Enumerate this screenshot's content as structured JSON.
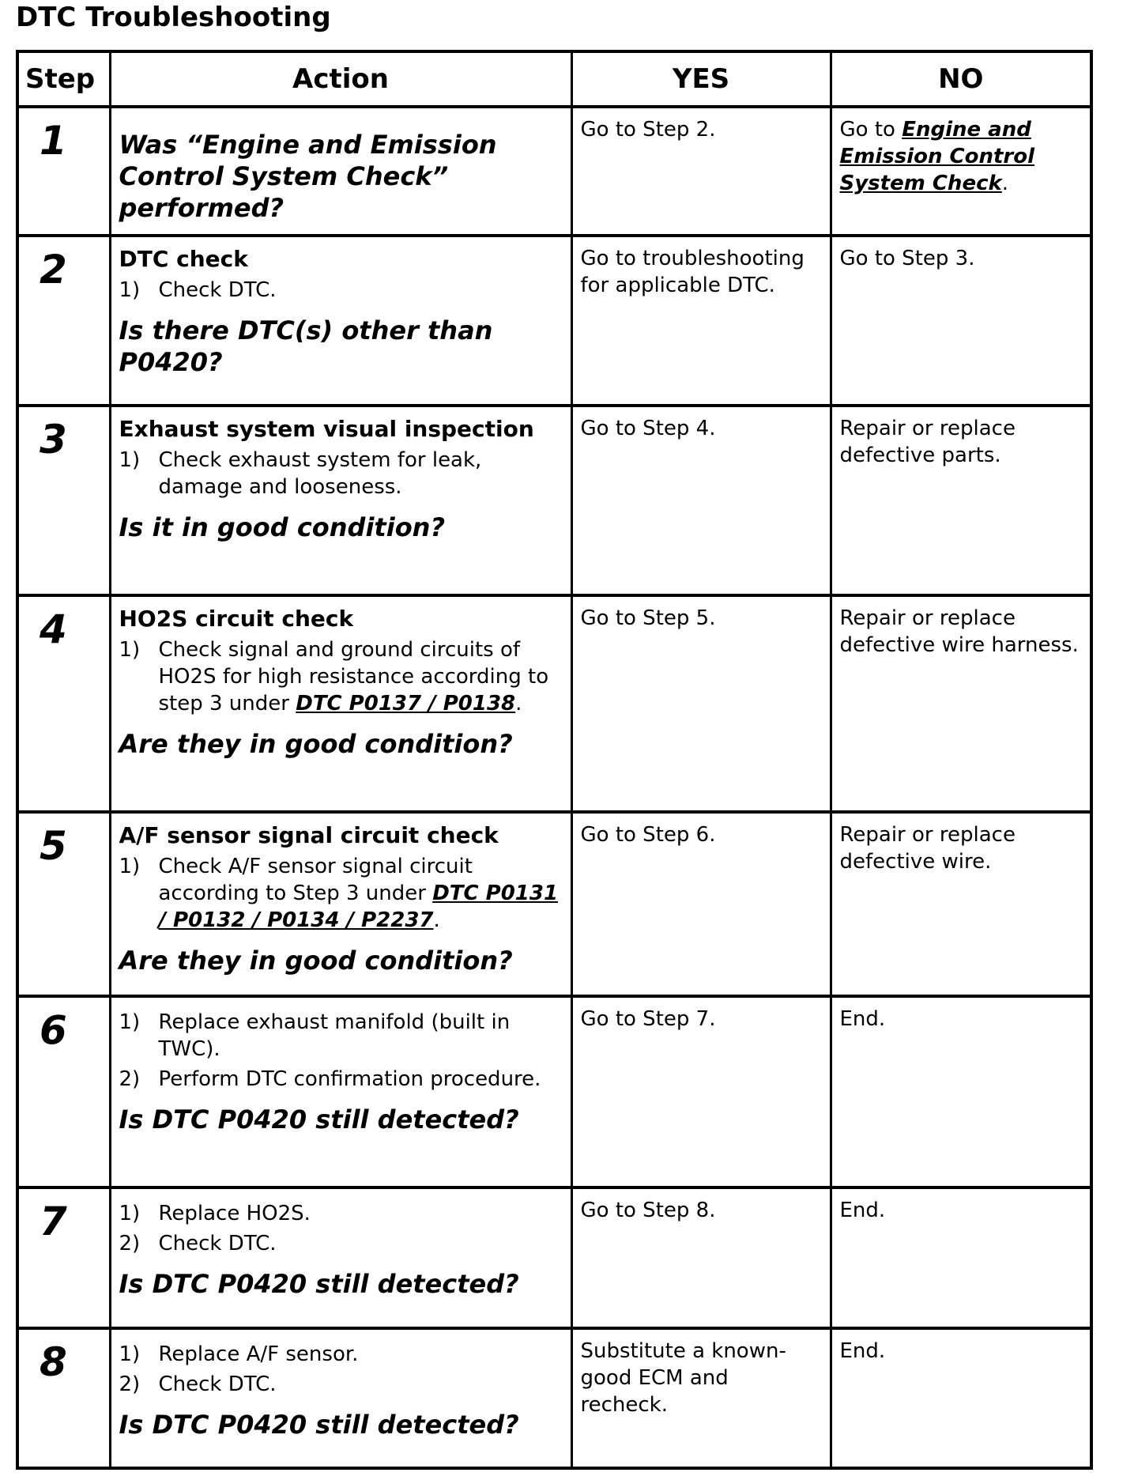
{
  "title": "DTC Troubleshooting",
  "headers": {
    "step": "Step",
    "action": "Action",
    "yes": "YES",
    "no": "NO"
  },
  "rows": [
    {
      "step": "1",
      "heading": "",
      "items": [],
      "question": "Was “Engine and Emission Control System Check” performed?",
      "yes": "Go to Step 2.",
      "no_pre": "Go to ",
      "no_link": "Engine and Emission Control System Check",
      "no_post": "."
    },
    {
      "step": "2",
      "heading": "DTC check",
      "items": [
        {
          "n": "1)",
          "text": "Check DTC."
        }
      ],
      "question": "Is there DTC(s) other than P0420?",
      "yes": "Go to troubleshooting for applicable DTC.",
      "no": "Go to Step 3."
    },
    {
      "step": "3",
      "heading": "Exhaust system visual inspection",
      "items": [
        {
          "n": "1)",
          "text": "Check exhaust system for leak, damage and looseness."
        }
      ],
      "question": "Is it in good condition?",
      "yes": "Go to Step 4.",
      "no": "Repair or replace defective parts."
    },
    {
      "step": "4",
      "heading": "HO2S circuit check",
      "items": [
        {
          "n": "1)",
          "text": "Check signal and ground circuits of HO2S for high resistance according to step 3 under ",
          "link": "DTC P0137 / P0138",
          "post": "."
        }
      ],
      "question": "Are they in good condition?",
      "yes": "Go to Step 5.",
      "no": "Repair or replace defective wire harness."
    },
    {
      "step": "5",
      "heading": "A/F sensor signal circuit check",
      "items": [
        {
          "n": "1)",
          "text": "Check A/F sensor signal circuit according to Step 3 under ",
          "link": "DTC P0131 / P0132 / P0134 / P2237",
          "post": "."
        }
      ],
      "question": "Are they in good condition?",
      "yes": "Go to Step 6.",
      "no": "Repair or replace defective wire."
    },
    {
      "step": "6",
      "heading": "",
      "items": [
        {
          "n": "1)",
          "text": "Replace exhaust manifold (built in TWC)."
        },
        {
          "n": "2)",
          "text": "Perform DTC confirmation procedure."
        }
      ],
      "question": "Is DTC P0420 still detected?",
      "yes": "Go to Step 7.",
      "no": "End."
    },
    {
      "step": "7",
      "heading": "",
      "items": [
        {
          "n": "1)",
          "text": "Replace HO2S."
        },
        {
          "n": "2)",
          "text": "Check DTC."
        }
      ],
      "question": "Is DTC P0420 still detected?",
      "yes": "Go to Step 8.",
      "no": "End."
    },
    {
      "step": "8",
      "heading": "",
      "items": [
        {
          "n": "1)",
          "text": "Replace A/F sensor."
        },
        {
          "n": "2)",
          "text": "Check DTC."
        }
      ],
      "question": "Is DTC P0420 still detected?",
      "yes": "Substitute a known-good ECM and recheck.",
      "no": "End."
    }
  ]
}
